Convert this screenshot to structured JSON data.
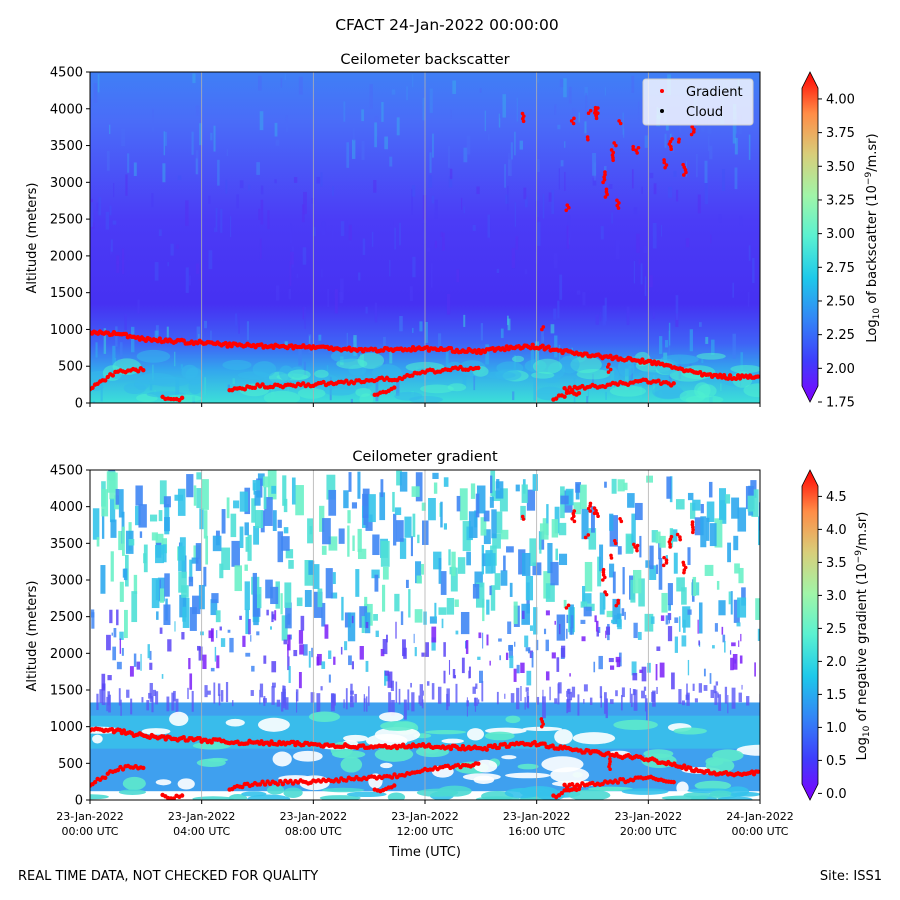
{
  "figure": {
    "title": "CFACT 24-Jan-2022 00:00:00",
    "footer_left": "REAL TIME DATA, NOT CHECKED FOR QUALITY",
    "footer_right": "Site: ISS1"
  },
  "colors": {
    "red": "#ff0000",
    "background_white": "#ffffff",
    "cmap": [
      "#7f00ff",
      "#3f3dfc",
      "#3385f6",
      "#1ec8ea",
      "#59f1d1",
      "#a0f5a8",
      "#d8ce7a",
      "#ff8c46",
      "#ff0000"
    ]
  },
  "chart_data": [
    {
      "type": "heatmap",
      "title": "Ceilometer backscatter",
      "ylabel": "Altitude (meters)",
      "ylim": [
        0,
        4500
      ],
      "yticks": [
        0,
        500,
        1000,
        1500,
        2000,
        2500,
        3000,
        3500,
        4000,
        4500
      ],
      "xlim_hours": [
        0,
        24
      ],
      "legend": {
        "placement": "top-right",
        "entries": [
          "Gradient",
          "Cloud"
        ]
      },
      "colorbar": {
        "label": "Log10 of backscatter (10^-9/m.sr)",
        "range": [
          1.75,
          4.2
        ],
        "ticks": [
          "1.75",
          "2.00",
          "2.25",
          "2.50",
          "2.75",
          "3.00",
          "3.25",
          "3.50",
          "3.75",
          "4.00"
        ]
      }
    },
    {
      "type": "heatmap",
      "title": "Ceilometer gradient",
      "ylabel": "Altitude (meters)",
      "xlabel": "Time (UTC)",
      "ylim": [
        0,
        4500
      ],
      "yticks": [
        0,
        500,
        1000,
        1500,
        2000,
        2500,
        3000,
        3500,
        4000,
        4500
      ],
      "xlim_hours": [
        0,
        24
      ],
      "xtick_hours": [
        0,
        4,
        8,
        12,
        16,
        20,
        24
      ],
      "xticks": [
        [
          "23-Jan-2022",
          "00:00 UTC"
        ],
        [
          "23-Jan-2022",
          "04:00 UTC"
        ],
        [
          "23-Jan-2022",
          "08:00 UTC"
        ],
        [
          "23-Jan-2022",
          "12:00 UTC"
        ],
        [
          "23-Jan-2022",
          "16:00 UTC"
        ],
        [
          "23-Jan-2022",
          "20:00 UTC"
        ],
        [
          "24-Jan-2022",
          "00:00 UTC"
        ]
      ],
      "colorbar": {
        "label": "Log10 of negative gradient (10^-9/m.sr)",
        "range": [
          -0.1,
          4.9
        ],
        "ticks": [
          "0.0",
          "0.5",
          "1.0",
          "1.5",
          "2.0",
          "2.5",
          "3.0",
          "3.5",
          "4.0",
          "4.5"
        ]
      }
    }
  ],
  "gradient_series": {
    "name": "Gradient",
    "upper_layer": [
      [
        0,
        960
      ],
      [
        1,
        940
      ],
      [
        2,
        870
      ],
      [
        3,
        840
      ],
      [
        4,
        820
      ],
      [
        5,
        790
      ],
      [
        6,
        780
      ],
      [
        7,
        770
      ],
      [
        8,
        760
      ],
      [
        9,
        740
      ],
      [
        10,
        720
      ],
      [
        11,
        730
      ],
      [
        12,
        740
      ],
      [
        13,
        720
      ],
      [
        14,
        700
      ],
      [
        15,
        750
      ],
      [
        16,
        770
      ],
      [
        17,
        700
      ],
      [
        18,
        650
      ],
      [
        19,
        600
      ],
      [
        20,
        560
      ],
      [
        21,
        480
      ],
      [
        22,
        380
      ],
      [
        23,
        350
      ],
      [
        24,
        370
      ]
    ],
    "lower_layer": [
      [
        0,
        200
      ],
      [
        1,
        430
      ],
      [
        2,
        460
      ],
      [
        5,
        160
      ],
      [
        6,
        230
      ],
      [
        7,
        240
      ],
      [
        8,
        250
      ],
      [
        9,
        280
      ],
      [
        10,
        310
      ],
      [
        11,
        330
      ],
      [
        12,
        420
      ],
      [
        13,
        460
      ],
      [
        14,
        480
      ],
      [
        17,
        190
      ],
      [
        18,
        220
      ],
      [
        20,
        300
      ],
      [
        21,
        250
      ]
    ],
    "lower_arc": [
      [
        2.6,
        60
      ],
      [
        3,
        40
      ],
      [
        3.4,
        50
      ],
      [
        10.2,
        120
      ],
      [
        10.6,
        150
      ],
      [
        11,
        200
      ],
      [
        16.6,
        50
      ],
      [
        17,
        110
      ],
      [
        17.6,
        150
      ]
    ],
    "upper_scatter": [
      [
        15.5,
        3830
      ],
      [
        17.3,
        3800
      ],
      [
        17.8,
        3580
      ],
      [
        17.9,
        3940
      ],
      [
        18.1,
        3910
      ],
      [
        18.15,
        3870
      ],
      [
        18.4,
        3000
      ],
      [
        18.5,
        2800
      ],
      [
        18.7,
        3300
      ],
      [
        18.8,
        3500
      ],
      [
        19,
        3800
      ],
      [
        19.5,
        3450
      ],
      [
        19.6,
        3400
      ],
      [
        20.6,
        3200
      ],
      [
        20.8,
        3450
      ],
      [
        21.1,
        3550
      ],
      [
        21.3,
        3100
      ],
      [
        21.6,
        3650
      ],
      [
        17.1,
        2620
      ],
      [
        18.9,
        2650
      ],
      [
        16.2,
        1000
      ],
      [
        18.6,
        420
      ]
    ]
  }
}
